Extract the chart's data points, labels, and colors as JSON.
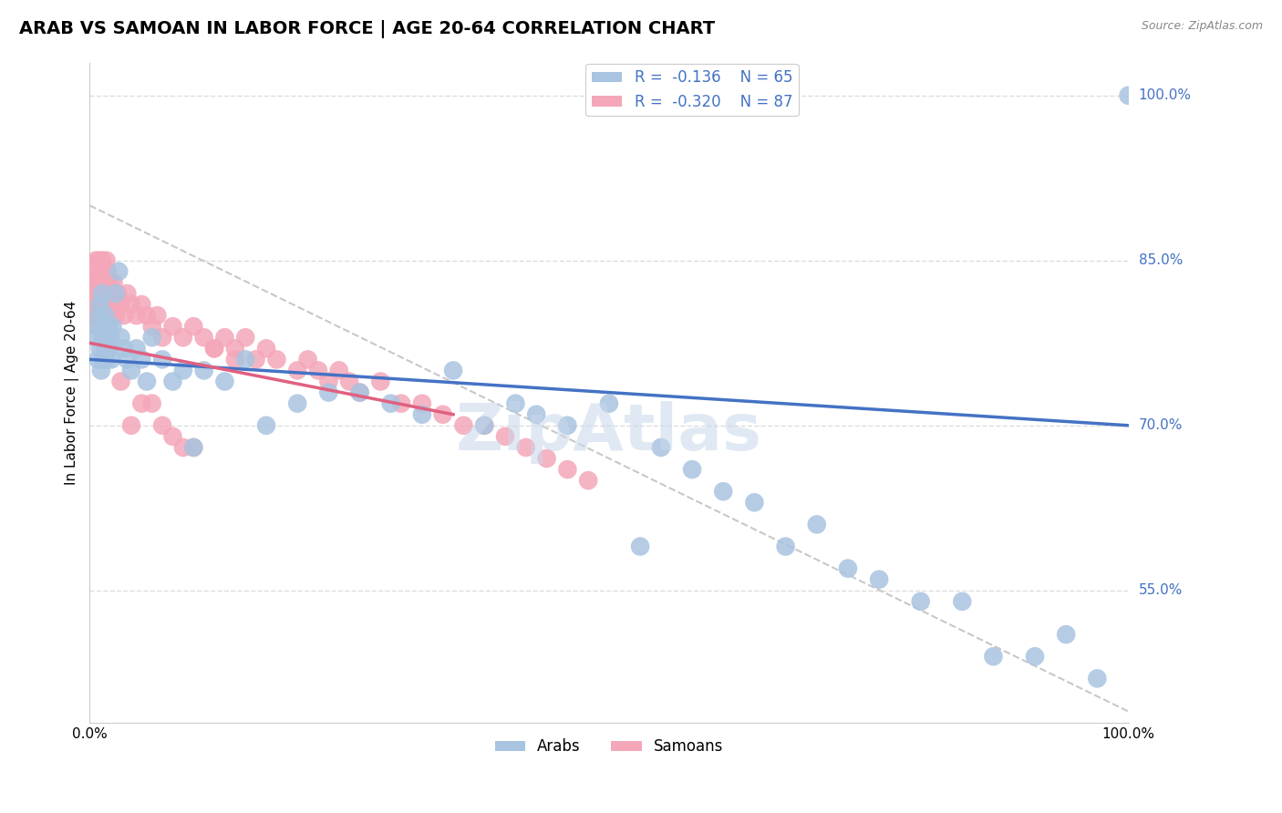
{
  "title": "ARAB VS SAMOAN IN LABOR FORCE | AGE 20-64 CORRELATION CHART",
  "source_text": "Source: ZipAtlas.com",
  "ylabel": "In Labor Force | Age 20-64",
  "xlim": [
    0.0,
    1.0
  ],
  "ylim": [
    0.43,
    1.03
  ],
  "arab_color": "#a8c4e0",
  "samoan_color": "#f4a7b9",
  "arab_line_color": "#4472c4",
  "samoan_line_color": "#e06080",
  "ref_line_color": "#c8c8c8",
  "legend_text_color": "#4472c4",
  "watermark": "ZipAtlas",
  "arab_R": -0.136,
  "arab_N": 65,
  "samoan_R": -0.32,
  "samoan_N": 87,
  "grid_color": "#dddddd",
  "bg_color": "#ffffff",
  "title_fontsize": 14,
  "axis_label_fontsize": 11,
  "tick_fontsize": 11,
  "legend_fontsize": 12,
  "arab_x": [
    0.005,
    0.007,
    0.008,
    0.009,
    0.01,
    0.01,
    0.011,
    0.012,
    0.012,
    0.013,
    0.014,
    0.015,
    0.015,
    0.016,
    0.017,
    0.018,
    0.019,
    0.02,
    0.021,
    0.022,
    0.025,
    0.028,
    0.03,
    0.033,
    0.036,
    0.04,
    0.045,
    0.05,
    0.055,
    0.06,
    0.07,
    0.08,
    0.09,
    0.1,
    0.11,
    0.13,
    0.15,
    0.17,
    0.2,
    0.23,
    0.26,
    0.29,
    0.32,
    0.35,
    0.38,
    0.41,
    0.43,
    0.46,
    0.5,
    0.53,
    0.55,
    0.58,
    0.61,
    0.64,
    0.67,
    0.7,
    0.73,
    0.76,
    0.8,
    0.84,
    0.87,
    0.91,
    0.94,
    0.97,
    1.0
  ],
  "arab_y": [
    0.78,
    0.79,
    0.76,
    0.8,
    0.77,
    0.81,
    0.75,
    0.78,
    0.82,
    0.76,
    0.79,
    0.77,
    0.8,
    0.76,
    0.78,
    0.79,
    0.77,
    0.78,
    0.76,
    0.79,
    0.82,
    0.84,
    0.78,
    0.77,
    0.76,
    0.75,
    0.77,
    0.76,
    0.74,
    0.78,
    0.76,
    0.74,
    0.75,
    0.68,
    0.75,
    0.74,
    0.76,
    0.7,
    0.72,
    0.73,
    0.73,
    0.72,
    0.71,
    0.75,
    0.7,
    0.72,
    0.71,
    0.7,
    0.72,
    0.59,
    0.68,
    0.66,
    0.64,
    0.63,
    0.59,
    0.61,
    0.57,
    0.56,
    0.54,
    0.54,
    0.49,
    0.49,
    0.51,
    0.47,
    1.0
  ],
  "samoan_x": [
    0.003,
    0.004,
    0.005,
    0.005,
    0.006,
    0.006,
    0.007,
    0.007,
    0.008,
    0.008,
    0.009,
    0.009,
    0.01,
    0.01,
    0.011,
    0.011,
    0.012,
    0.012,
    0.013,
    0.013,
    0.014,
    0.014,
    0.015,
    0.015,
    0.016,
    0.016,
    0.017,
    0.017,
    0.018,
    0.018,
    0.019,
    0.019,
    0.02,
    0.021,
    0.022,
    0.023,
    0.025,
    0.027,
    0.03,
    0.033,
    0.036,
    0.04,
    0.045,
    0.05,
    0.055,
    0.06,
    0.065,
    0.07,
    0.08,
    0.09,
    0.1,
    0.11,
    0.12,
    0.13,
    0.14,
    0.15,
    0.16,
    0.17,
    0.18,
    0.2,
    0.21,
    0.22,
    0.23,
    0.24,
    0.25,
    0.26,
    0.28,
    0.3,
    0.32,
    0.34,
    0.36,
    0.38,
    0.4,
    0.42,
    0.44,
    0.46,
    0.48,
    0.12,
    0.14,
    0.04,
    0.06,
    0.08,
    0.1,
    0.03,
    0.05,
    0.07,
    0.09
  ],
  "samoan_y": [
    0.83,
    0.82,
    0.8,
    0.84,
    0.81,
    0.85,
    0.82,
    0.79,
    0.83,
    0.8,
    0.82,
    0.85,
    0.81,
    0.84,
    0.8,
    0.83,
    0.82,
    0.85,
    0.81,
    0.84,
    0.82,
    0.8,
    0.83,
    0.81,
    0.85,
    0.82,
    0.8,
    0.84,
    0.81,
    0.82,
    0.83,
    0.81,
    0.8,
    0.82,
    0.81,
    0.83,
    0.8,
    0.82,
    0.81,
    0.8,
    0.82,
    0.81,
    0.8,
    0.81,
    0.8,
    0.79,
    0.8,
    0.78,
    0.79,
    0.78,
    0.79,
    0.78,
    0.77,
    0.78,
    0.77,
    0.78,
    0.76,
    0.77,
    0.76,
    0.75,
    0.76,
    0.75,
    0.74,
    0.75,
    0.74,
    0.73,
    0.74,
    0.72,
    0.72,
    0.71,
    0.7,
    0.7,
    0.69,
    0.68,
    0.67,
    0.66,
    0.65,
    0.77,
    0.76,
    0.7,
    0.72,
    0.69,
    0.68,
    0.74,
    0.72,
    0.7,
    0.68
  ],
  "arab_line_x0": 0.0,
  "arab_line_y0": 0.76,
  "arab_line_x1": 1.0,
  "arab_line_y1": 0.7,
  "samoan_line_x0": 0.0,
  "samoan_line_y0": 0.775,
  "samoan_line_x1": 0.35,
  "samoan_line_y1": 0.71,
  "ref_line_x0": 0.0,
  "ref_line_y0": 0.9,
  "ref_line_x1": 1.0,
  "ref_line_y1": 0.44
}
